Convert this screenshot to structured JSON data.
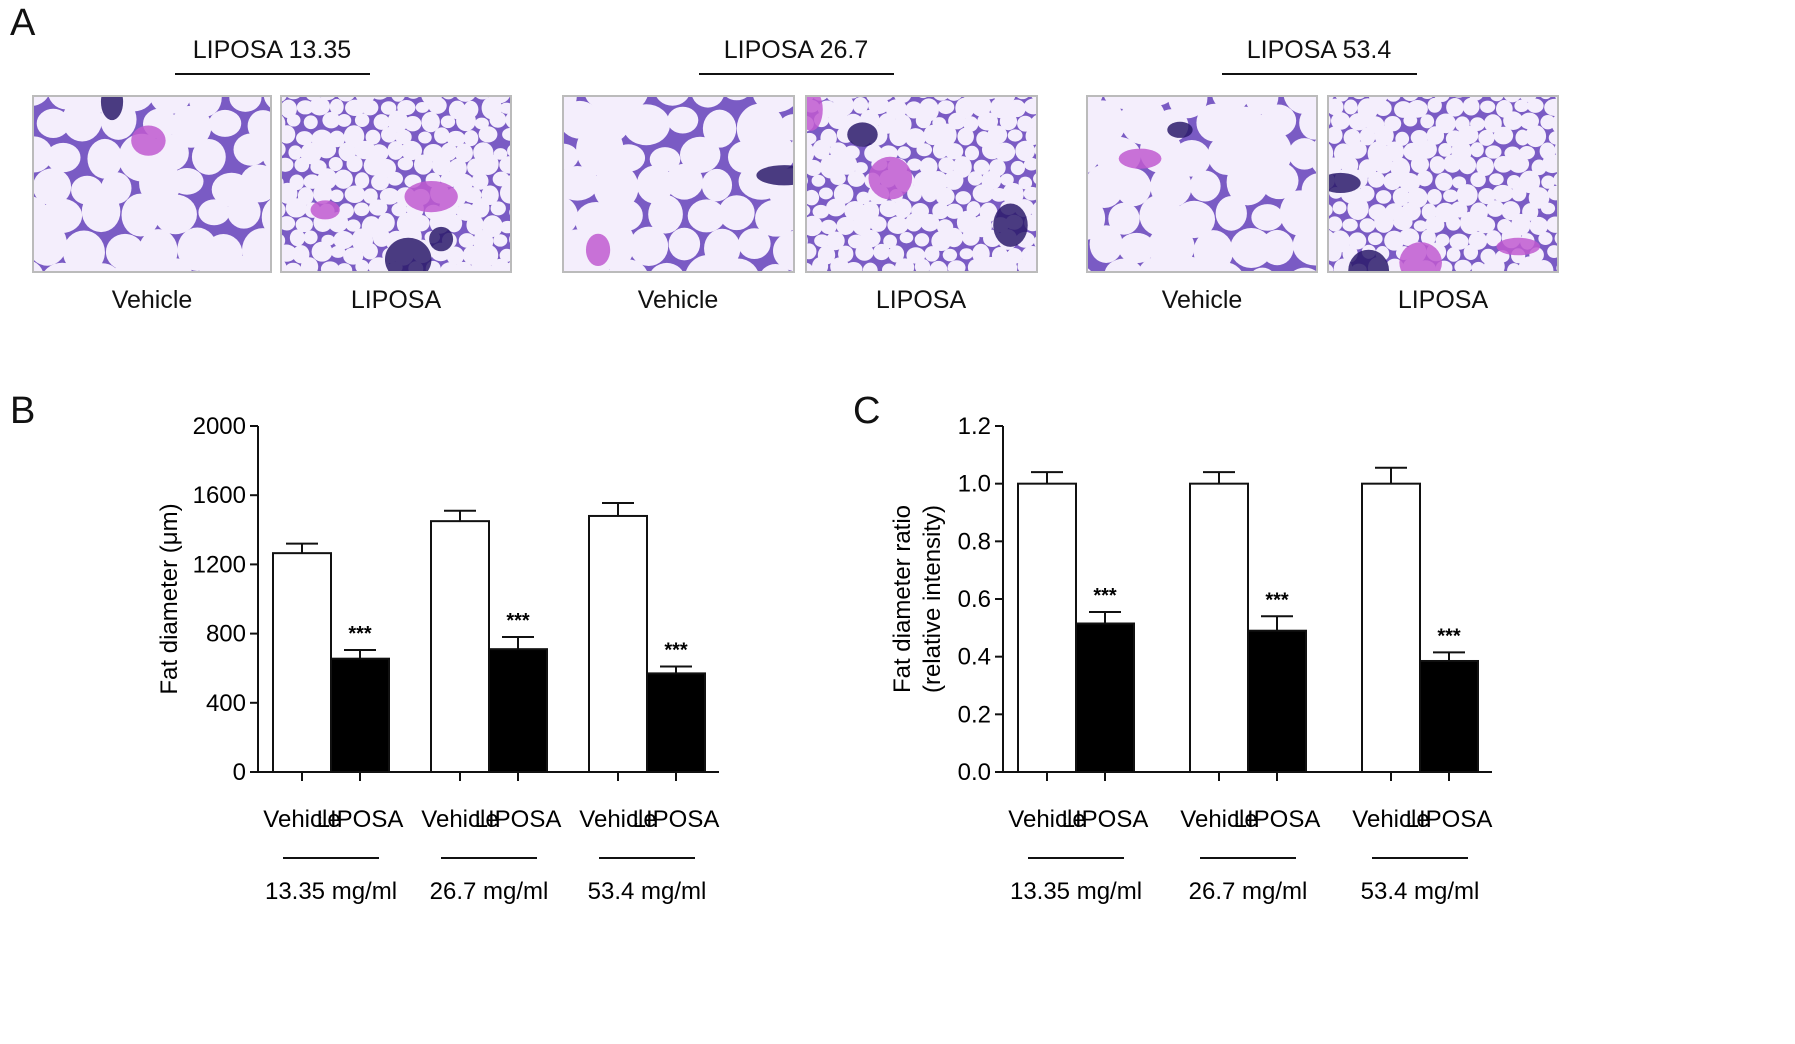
{
  "panel_letters": {
    "a": "A",
    "b": "B",
    "c": "C"
  },
  "panel_a": {
    "groups": [
      {
        "title": "LIPOSA  13.35",
        "left_label": "Vehicle",
        "right_label": "LIPOSA"
      },
      {
        "title": "LIPOSA  26.7",
        "left_label": "Vehicle",
        "right_label": "LIPOSA"
      },
      {
        "title": "LIPOSA  53.4",
        "left_label": "Vehicle",
        "right_label": "LIPOSA"
      }
    ],
    "stain_colors": {
      "background": "#f4eefc",
      "membrane": "#7a5bc4",
      "dense": "#2b1b6b",
      "pink": "#c05ad0"
    }
  },
  "chart_data": [
    {
      "type": "bar",
      "panel": "B",
      "ylabel": "Fat diameter (μm)",
      "ylim": [
        0,
        2000
      ],
      "yticks": [
        "0",
        "400",
        "800",
        "1200",
        "1600",
        "2000"
      ],
      "categories": [
        "Vehicle",
        "LIPOSA",
        "Vehicle",
        "LIPOSA",
        "Vehicle",
        "LIPOSA"
      ],
      "values": [
        1265,
        655,
        1450,
        710,
        1480,
        570
      ],
      "errors": [
        55,
        50,
        60,
        70,
        75,
        40
      ],
      "fills": [
        "white",
        "black",
        "white",
        "black",
        "white",
        "black"
      ],
      "annotations": [
        "",
        "***",
        "",
        "***",
        "",
        "***"
      ],
      "group_labels": [
        "13.35 mg/ml",
        "26.7 mg/ml",
        "53.4 mg/ml"
      ],
      "grid": false
    },
    {
      "type": "bar",
      "panel": "C",
      "ylabel": [
        "Fat diameter ratio",
        "(relative intensity)"
      ],
      "ylim": [
        0,
        1.2
      ],
      "yticks": [
        "0.0",
        "0.2",
        "0.4",
        "0.6",
        "0.8",
        "1.0",
        "1.2"
      ],
      "categories": [
        "Vehicle",
        "LIPOSA",
        "Vehicle",
        "LIPOSA",
        "Vehicle",
        "LIPOSA"
      ],
      "values": [
        1.0,
        0.515,
        1.0,
        0.49,
        1.0,
        0.385
      ],
      "errors": [
        0.04,
        0.04,
        0.04,
        0.05,
        0.055,
        0.03
      ],
      "fills": [
        "white",
        "black",
        "white",
        "black",
        "white",
        "black"
      ],
      "annotations": [
        "",
        "***",
        "",
        "***",
        "",
        "***"
      ],
      "group_labels": [
        "13.35 mg/ml",
        "26.7 mg/ml",
        "53.4 mg/ml"
      ],
      "grid": false
    }
  ]
}
